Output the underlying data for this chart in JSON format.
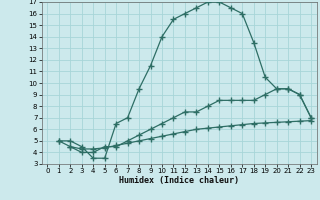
{
  "xlabel": "Humidex (Indice chaleur)",
  "bg_color": "#cce9ec",
  "grid_color": "#b0d8dc",
  "line_color": "#2e6e65",
  "xlim": [
    -0.5,
    23.5
  ],
  "ylim": [
    3,
    17
  ],
  "xticks": [
    0,
    1,
    2,
    3,
    4,
    5,
    6,
    7,
    8,
    9,
    10,
    11,
    12,
    13,
    14,
    15,
    16,
    17,
    18,
    19,
    20,
    21,
    22,
    23
  ],
  "yticks": [
    3,
    4,
    5,
    6,
    7,
    8,
    9,
    10,
    11,
    12,
    13,
    14,
    15,
    16,
    17
  ],
  "curve1_x": [
    1,
    2,
    3,
    4,
    5,
    6,
    7,
    8,
    9,
    10,
    11,
    12,
    13,
    14,
    15,
    16,
    17,
    18,
    19,
    20,
    21,
    22,
    23
  ],
  "curve1_y": [
    5.0,
    5.0,
    4.5,
    3.5,
    3.5,
    6.5,
    7.0,
    9.5,
    11.5,
    14.0,
    15.5,
    16.0,
    16.5,
    17.0,
    17.0,
    16.5,
    16.0,
    13.5,
    10.5,
    9.5,
    9.5,
    9.0,
    7.0
  ],
  "curve2_x": [
    1,
    2,
    3,
    4,
    5,
    6,
    7,
    8,
    9,
    10,
    11,
    12,
    13,
    14,
    15,
    16,
    17,
    18,
    19,
    20,
    21,
    22,
    23
  ],
  "curve2_y": [
    5.0,
    4.5,
    4.0,
    4.0,
    4.5,
    4.5,
    5.0,
    5.5,
    6.0,
    6.5,
    7.0,
    7.5,
    7.5,
    8.0,
    8.5,
    8.5,
    8.5,
    8.5,
    9.0,
    9.5,
    9.5,
    9.0,
    7.0
  ],
  "curve3_x": [
    2,
    3,
    4,
    5,
    6,
    7,
    8,
    9,
    10,
    11,
    12,
    13,
    14,
    15,
    16,
    17,
    18,
    19,
    20,
    21,
    22,
    23
  ],
  "curve3_y": [
    4.5,
    4.3,
    4.3,
    4.4,
    4.6,
    4.8,
    5.0,
    5.2,
    5.4,
    5.6,
    5.8,
    6.0,
    6.1,
    6.2,
    6.3,
    6.4,
    6.5,
    6.55,
    6.6,
    6.65,
    6.7,
    6.75
  ]
}
